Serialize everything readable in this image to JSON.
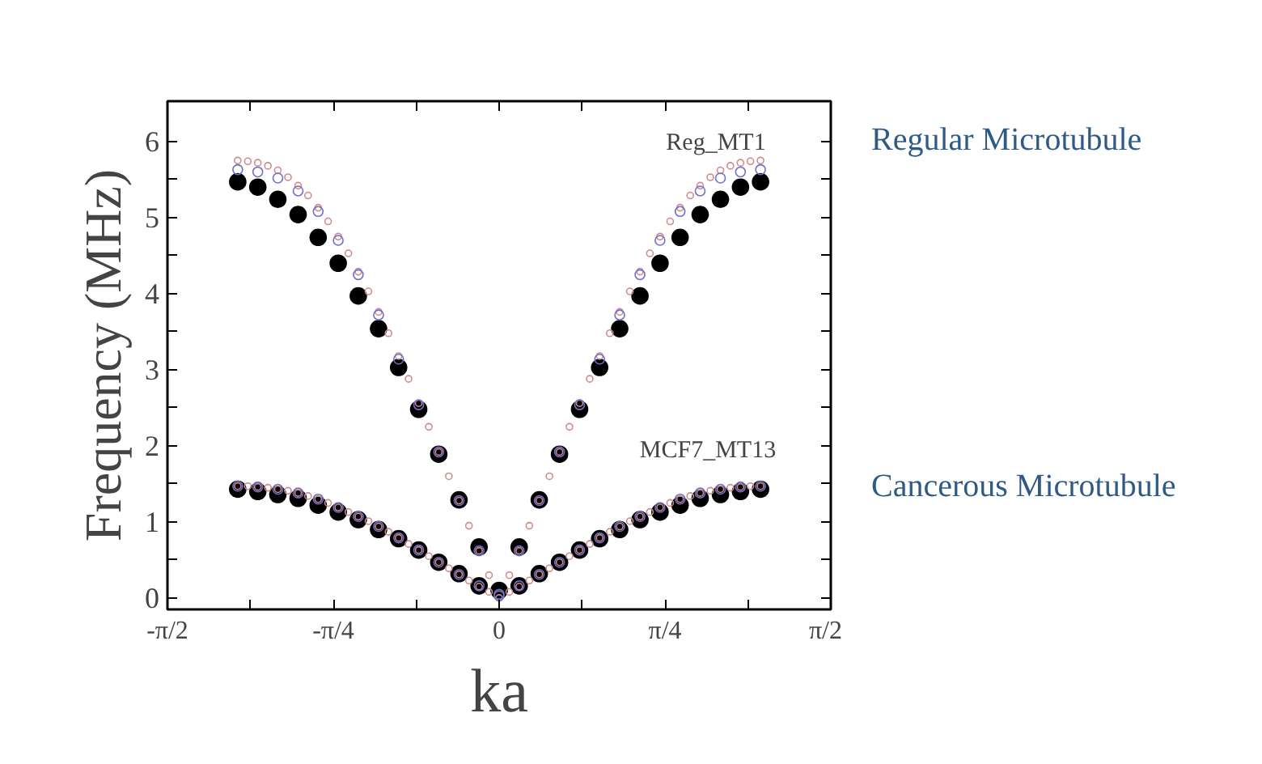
{
  "chart_data": {
    "type": "scatter",
    "xlabel": "ka",
    "ylabel": "Frequency (MHz)",
    "xlim": [
      -1.5708,
      1.5708
    ],
    "ylim": [
      -0.15,
      6.53
    ],
    "xticks": [
      {
        "value": -1.5708,
        "label": "-π/2"
      },
      {
        "value": -1.1781,
        "label": null
      },
      {
        "value": -0.7854,
        "label": "-π/4"
      },
      {
        "value": -0.3927,
        "label": null
      },
      0,
      {
        "value": 0.3927,
        "label": null
      },
      {
        "value": 0.7854,
        "label": "π/4"
      },
      {
        "value": 1.1781,
        "label": null
      },
      {
        "value": 1.5708,
        "label": "π/2"
      }
    ],
    "yticks": [
      0,
      {
        "value": 0.5,
        "label": null
      },
      1,
      {
        "value": 1.5,
        "label": null
      },
      2,
      {
        "value": 2.5,
        "label": null
      },
      3,
      {
        "value": 3.5,
        "label": null
      },
      4,
      {
        "value": 4.5,
        "label": null
      },
      5,
      {
        "value": 5.5,
        "label": null
      },
      6
    ],
    "grid": false,
    "series": [
      {
        "color": "#d08a8a",
        "marker": "circle_open",
        "x": [
          -1.238,
          -1.19,
          -1.143,
          -1.095,
          -1.048,
          -1.0,
          -0.952,
          -0.905,
          -0.857,
          -0.81,
          -0.762,
          -0.714,
          -0.667,
          -0.619,
          -0.571,
          -0.524,
          -0.476,
          -0.429,
          -0.381,
          -0.333,
          -0.286,
          -0.238,
          -0.19,
          -0.143,
          -0.095,
          -0.048,
          0,
          0.048,
          0.095,
          0.143,
          0.19,
          0.238,
          0.286,
          0.333,
          0.381,
          0.429,
          0.476,
          0.524,
          0.571,
          0.619,
          0.667,
          0.714,
          0.762,
          0.81,
          0.857,
          0.905,
          0.952,
          1.0,
          1.048,
          1.095,
          1.143,
          1.19,
          1.238
        ],
        "values": [
          5.75,
          5.74,
          5.72,
          5.68,
          5.62,
          5.53,
          5.42,
          5.29,
          5.13,
          4.95,
          4.75,
          4.53,
          4.29,
          4.03,
          3.76,
          3.48,
          3.18,
          2.88,
          2.56,
          2.25,
          1.92,
          1.6,
          1.28,
          0.95,
          0.62,
          0.3,
          0.0,
          0.3,
          0.62,
          0.95,
          1.28,
          1.6,
          1.92,
          2.25,
          2.56,
          2.88,
          3.18,
          3.48,
          3.76,
          4.03,
          4.29,
          4.53,
          4.75,
          4.95,
          5.13,
          5.29,
          5.42,
          5.53,
          5.62,
          5.68,
          5.72,
          5.74,
          5.75
        ]
      },
      {
        "color": "#d08a8a",
        "marker": "circle_open",
        "x": [
          -1.238,
          -1.19,
          -1.143,
          -1.095,
          -1.048,
          -1.0,
          -0.952,
          -0.905,
          -0.857,
          -0.81,
          -0.762,
          -0.714,
          -0.667,
          -0.619,
          -0.571,
          -0.524,
          -0.476,
          -0.429,
          -0.381,
          -0.333,
          -0.286,
          -0.238,
          -0.19,
          -0.143,
          -0.095,
          -0.048,
          0,
          0.048,
          0.095,
          0.143,
          0.19,
          0.238,
          0.286,
          0.333,
          0.381,
          0.429,
          0.476,
          0.524,
          0.571,
          0.619,
          0.667,
          0.714,
          0.762,
          0.81,
          0.857,
          0.905,
          0.952,
          1.0,
          1.048,
          1.095,
          1.143,
          1.19,
          1.238
        ],
        "values": [
          1.47,
          1.47,
          1.46,
          1.45,
          1.43,
          1.41,
          1.38,
          1.34,
          1.3,
          1.25,
          1.19,
          1.13,
          1.07,
          1.01,
          0.94,
          0.87,
          0.79,
          0.71,
          0.63,
          0.55,
          0.47,
          0.39,
          0.31,
          0.23,
          0.15,
          0.08,
          null,
          0.08,
          0.15,
          0.23,
          0.31,
          0.39,
          0.47,
          0.55,
          0.63,
          0.71,
          0.79,
          0.87,
          0.94,
          1.01,
          1.07,
          1.13,
          1.19,
          1.25,
          1.3,
          1.34,
          1.38,
          1.41,
          1.43,
          1.45,
          1.46,
          1.47,
          1.47
        ]
      },
      {
        "color": "#7070c8",
        "marker": "circle_open",
        "x": [
          -1.238,
          -1.143,
          -1.048,
          -0.952,
          -0.857,
          -0.762,
          -0.667,
          -0.571,
          -0.476,
          -0.381,
          -0.286,
          -0.19,
          -0.095,
          0,
          0.095,
          0.19,
          0.286,
          0.381,
          0.476,
          0.571,
          0.667,
          0.762,
          0.857,
          0.952,
          1.048,
          1.143,
          1.238
        ],
        "values": [
          5.63,
          5.6,
          5.52,
          5.35,
          5.08,
          4.7,
          4.25,
          3.72,
          3.14,
          2.54,
          1.92,
          1.28,
          0.62,
          0.05,
          0.62,
          1.28,
          1.92,
          2.54,
          3.14,
          3.72,
          4.25,
          4.7,
          5.08,
          5.35,
          5.52,
          5.6,
          5.63
        ]
      },
      {
        "color": "#7070c8",
        "marker": "circle_open",
        "x": [
          -1.238,
          -1.143,
          -1.048,
          -0.952,
          -0.857,
          -0.762,
          -0.667,
          -0.571,
          -0.476,
          -0.381,
          -0.286,
          -0.19,
          -0.095,
          0,
          0.095,
          0.19,
          0.286,
          0.381,
          0.476,
          0.571,
          0.667,
          0.762,
          0.857,
          0.952,
          1.048,
          1.143,
          1.238
        ],
        "values": [
          1.47,
          1.46,
          1.43,
          1.38,
          1.3,
          1.19,
          1.07,
          0.94,
          0.79,
          0.63,
          0.47,
          0.31,
          0.16,
          0.03,
          0.16,
          0.31,
          0.47,
          0.63,
          0.79,
          0.94,
          1.07,
          1.19,
          1.3,
          1.38,
          1.43,
          1.46,
          1.47
        ]
      },
      {
        "color": "#000000",
        "marker": "circle",
        "x": [
          -1.238,
          -1.143,
          -1.048,
          -0.952,
          -0.857,
          -0.762,
          -0.667,
          -0.571,
          -0.476,
          -0.381,
          -0.286,
          -0.19,
          -0.095,
          0,
          0.095,
          0.19,
          0.286,
          0.381,
          0.476,
          0.571,
          0.667,
          0.762,
          0.857,
          0.952,
          1.048,
          1.143,
          1.238
        ],
        "values": [
          5.47,
          5.4,
          5.24,
          5.04,
          4.74,
          4.4,
          3.97,
          3.54,
          3.03,
          2.48,
          1.89,
          1.29,
          0.67,
          null,
          0.67,
          1.29,
          1.89,
          2.48,
          3.03,
          3.54,
          3.97,
          4.4,
          4.74,
          5.04,
          5.24,
          5.4,
          5.47
        ]
      },
      {
        "color": "#000000",
        "marker": "circle",
        "x": [
          -1.238,
          -1.143,
          -1.048,
          -0.952,
          -0.857,
          -0.762,
          -0.667,
          -0.571,
          -0.476,
          -0.381,
          -0.286,
          -0.19,
          -0.095,
          0,
          0.095,
          0.19,
          0.286,
          0.381,
          0.476,
          0.571,
          0.667,
          0.762,
          0.857,
          0.952,
          1.048,
          1.143,
          1.238
        ],
        "values": [
          1.43,
          1.4,
          1.36,
          1.31,
          1.22,
          1.13,
          1.03,
          0.9,
          0.78,
          0.63,
          0.47,
          0.32,
          0.16,
          0.1,
          0.16,
          0.32,
          0.47,
          0.63,
          0.78,
          0.9,
          1.03,
          1.13,
          1.22,
          1.31,
          1.36,
          1.4,
          1.43
        ]
      }
    ],
    "annotations": [
      "Reg_MT1",
      "MCF7_MT13",
      "Regular Microtubule",
      "Cancerous Microtubule"
    ]
  }
}
